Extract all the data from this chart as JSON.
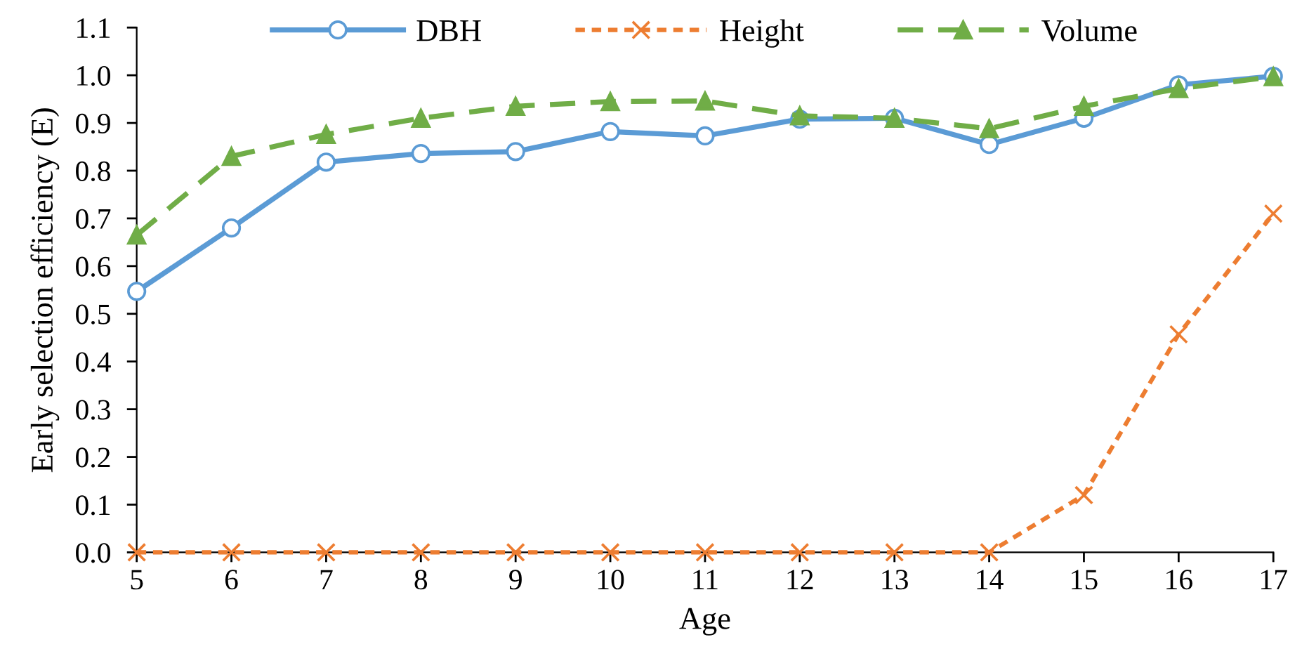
{
  "chart_data": {
    "type": "line",
    "xlabel": "Age",
    "ylabel": "Early selection efficiency (E)",
    "x": [
      5,
      6,
      7,
      8,
      9,
      10,
      11,
      12,
      13,
      14,
      15,
      16,
      17
    ],
    "series": [
      {
        "name": "DBH",
        "color": "#5b9bd5",
        "marker": "circle",
        "line_style": "solid",
        "values": [
          0.547,
          0.68,
          0.818,
          0.836,
          0.84,
          0.882,
          0.873,
          0.908,
          0.91,
          0.855,
          0.91,
          0.98,
          0.998
        ]
      },
      {
        "name": "Height",
        "color": "#ed7d31",
        "marker": "cross",
        "line_style": "dotted",
        "values": [
          0,
          0,
          0,
          0,
          0,
          0,
          0,
          0,
          0,
          0,
          0.12,
          0.457,
          0.71
        ]
      },
      {
        "name": "Volume",
        "color": "#70ad47",
        "marker": "triangle",
        "line_style": "dashed",
        "values": [
          0.665,
          0.83,
          0.876,
          0.91,
          0.935,
          0.945,
          0.946,
          0.915,
          0.91,
          0.888,
          0.935,
          0.972,
          0.997
        ]
      }
    ],
    "xlim": [
      5,
      17
    ],
    "xticks": [
      5,
      6,
      7,
      8,
      9,
      10,
      11,
      12,
      13,
      14,
      15,
      16,
      17
    ],
    "ylim": [
      0,
      1.1
    ],
    "yticks": [
      {
        "value": 0,
        "label": "0.0"
      },
      0.1,
      0.2,
      0.3,
      0.4,
      0.5,
      0.6,
      0.7,
      0.8,
      0.9,
      {
        "value": 1,
        "label": "1.0"
      },
      1.1
    ],
    "grid": false,
    "legend": "top"
  }
}
